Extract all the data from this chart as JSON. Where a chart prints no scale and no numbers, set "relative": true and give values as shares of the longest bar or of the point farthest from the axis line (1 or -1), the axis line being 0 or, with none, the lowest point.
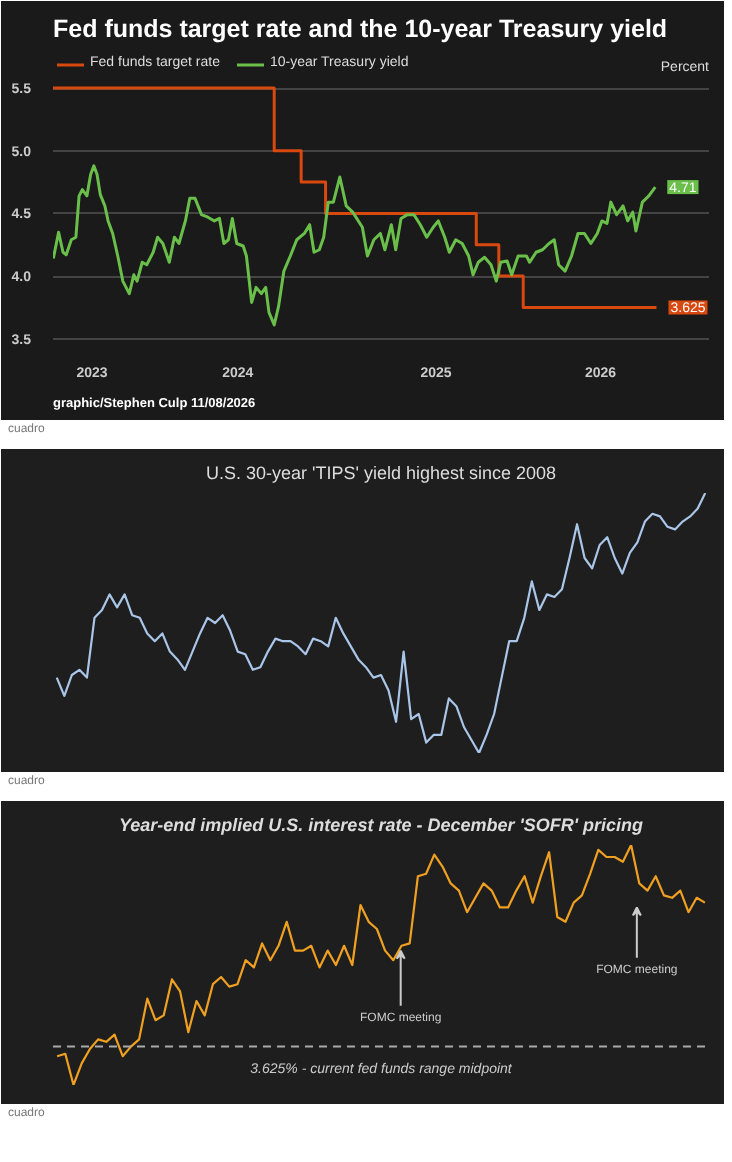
{
  "chart_data": [
    {
      "type": "line",
      "title": "Fed funds target rate and the 10-year Treasury yield",
      "ylabel": "Percent",
      "xlim": [
        2022.77,
        2026.64
      ],
      "xticks": [
        {
          "value": 2023,
          "label": "2023"
        },
        {
          "value": 2023.86,
          "label": "2024"
        },
        {
          "value": 2025.03,
          "label": "2025"
        },
        {
          "value": 2026,
          "label": "2026"
        }
      ],
      "ylim": [
        3.45,
        5.78
      ],
      "yticks": [
        3.5,
        {
          "value": 4,
          "label": "4.0"
        },
        4.5,
        {
          "value": 5,
          "label": "5.0"
        },
        5.5
      ],
      "grid": "y",
      "legend": "top left",
      "series": [
        {
          "name": "Fed funds target rate",
          "type": "step",
          "color": "#d9480f",
          "x": [
            2022.77,
            2024.075,
            2024.234,
            2024.378,
            2025.267,
            2025.4,
            2025.544,
            2026.33
          ],
          "values": [
            5.5,
            5.0,
            4.75,
            4.5,
            4.25,
            4.0,
            3.75,
            3.75
          ]
        },
        {
          "name": "10-year Treasury yield",
          "type": "line",
          "color": "#6abf4b",
          "x": [
            2022.772,
            2022.803,
            2022.829,
            2022.848,
            2022.878,
            2022.905,
            2022.924,
            2022.943,
            2022.97,
            2022.992,
            2023.011,
            2023.03,
            2023.049,
            2023.076,
            2023.095,
            2023.122,
            2023.152,
            2023.182,
            2023.22,
            2023.247,
            2023.266,
            2023.296,
            2023.323,
            2023.361,
            2023.387,
            2023.418,
            2023.456,
            2023.486,
            2023.513,
            2023.551,
            2023.577,
            2023.608,
            2023.646,
            2023.684,
            2023.722,
            2023.752,
            2023.778,
            2023.805,
            2023.828,
            2023.854,
            2023.892,
            2023.911,
            2023.942,
            2023.968,
            2023.999,
            2024.025,
            2024.044,
            2024.075,
            2024.101,
            2024.132,
            2024.17,
            2024.208,
            2024.253,
            2024.284,
            2024.31,
            2024.341,
            2024.367,
            2024.394,
            2024.424,
            2024.462,
            2024.5,
            2024.538,
            2024.595,
            2024.625,
            2024.663,
            2024.701,
            2024.728,
            2024.766,
            2024.792,
            2024.823,
            2024.861,
            2024.899,
            2024.937,
            2024.975,
            2025.013,
            2025.043,
            2025.081,
            2025.108,
            2025.146,
            2025.184,
            2025.222,
            2025.248,
            2025.279,
            2025.316,
            2025.354,
            2025.385,
            2025.411,
            2025.449,
            2025.476,
            2025.514,
            2025.563,
            2025.582,
            2025.62,
            2025.658,
            2025.696,
            2025.727,
            2025.753,
            2025.791,
            2025.829,
            2025.867,
            2025.905,
            2025.943,
            2025.981,
            2026.008,
            2026.038,
            2026.061,
            2026.095,
            2026.133,
            2026.16,
            2026.19,
            2026.209,
            2026.247,
            2026.285,
            2026.323
          ],
          "values": [
            4.14,
            4.35,
            4.19,
            4.17,
            4.29,
            4.31,
            4.64,
            4.69,
            4.64,
            4.81,
            4.88,
            4.81,
            4.65,
            4.56,
            4.44,
            4.34,
            4.16,
            3.96,
            3.86,
            4.01,
            3.96,
            4.11,
            4.09,
            4.19,
            4.31,
            4.26,
            4.11,
            4.31,
            4.26,
            4.44,
            4.62,
            4.62,
            4.49,
            4.47,
            4.44,
            4.46,
            4.26,
            4.29,
            4.46,
            4.26,
            4.24,
            4.16,
            3.79,
            3.91,
            3.86,
            3.91,
            3.71,
            3.61,
            3.76,
            4.04,
            4.16,
            4.29,
            4.34,
            4.41,
            4.19,
            4.21,
            4.31,
            4.59,
            4.59,
            4.79,
            4.56,
            4.51,
            4.39,
            4.16,
            4.29,
            4.34,
            4.21,
            4.41,
            4.21,
            4.46,
            4.49,
            4.49,
            4.41,
            4.31,
            4.39,
            4.44,
            4.31,
            4.19,
            4.29,
            4.26,
            4.16,
            4.01,
            4.11,
            4.15,
            4.09,
            3.96,
            4.11,
            4.12,
            4.01,
            4.16,
            4.16,
            4.11,
            4.19,
            4.21,
            4.26,
            4.29,
            4.09,
            4.04,
            4.16,
            4.34,
            4.34,
            4.26,
            4.34,
            4.44,
            4.42,
            4.59,
            4.49,
            4.56,
            4.44,
            4.51,
            4.36,
            4.59,
            4.64,
            4.71
          ]
        }
      ],
      "annotations": [
        {
          "text": "3.625",
          "x": 2026.33,
          "y": 3.75
        },
        {
          "text": "4.71",
          "x": 2026.323,
          "y": 4.71
        },
        "graphic/Stephen Culp 11/08/2026",
        "cuadro"
      ]
    },
    {
      "type": "line",
      "title": "U.S. 30-year 'TIPS' yield highest since 2008",
      "relative": true,
      "categories": [
        null,
        null,
        null,
        null,
        null,
        null,
        null,
        null,
        null,
        null,
        null,
        null,
        null,
        null,
        null,
        null,
        null,
        null,
        null,
        null,
        null,
        null,
        null,
        null,
        null,
        null,
        null,
        null,
        null,
        null,
        null,
        null,
        null,
        null,
        null,
        null,
        null,
        null,
        null,
        null,
        null,
        null,
        null,
        null,
        null,
        null,
        null,
        null,
        null,
        null,
        null,
        null,
        null,
        null,
        null,
        null,
        null,
        null,
        null,
        null,
        null,
        null,
        null,
        null,
        null,
        null,
        null,
        null,
        null,
        null,
        null,
        null,
        null,
        null,
        null,
        null,
        null,
        null,
        null,
        null,
        null,
        null,
        null,
        null,
        null,
        null,
        null
      ],
      "color": "#a9c6e8",
      "values": [
        0.29,
        0.22,
        0.3,
        0.32,
        0.29,
        0.52,
        0.55,
        0.61,
        0.56,
        0.61,
        0.53,
        0.52,
        0.46,
        0.43,
        0.46,
        0.39,
        0.36,
        0.32,
        0.39,
        0.46,
        0.52,
        0.5,
        0.53,
        0.47,
        0.39,
        0.38,
        0.32,
        0.33,
        0.39,
        0.44,
        0.43,
        0.43,
        0.41,
        0.38,
        0.44,
        0.43,
        0.41,
        0.52,
        0.46,
        0.41,
        0.36,
        0.33,
        0.29,
        0.3,
        0.24,
        0.12,
        0.39,
        0.13,
        0.15,
        0.04,
        0.07,
        0.07,
        0.21,
        0.18,
        0.1,
        0.05,
        0.0,
        0.07,
        0.15,
        0.29,
        0.43,
        0.43,
        0.52,
        0.66,
        0.55,
        0.61,
        0.6,
        0.63,
        0.75,
        0.88,
        0.75,
        0.71,
        0.8,
        0.83,
        0.75,
        0.69,
        0.77,
        0.81,
        0.89,
        0.92,
        0.91,
        0.87,
        0.86,
        0.89,
        0.91,
        0.94,
        1.0
      ],
      "annotations": [
        "cuadro"
      ]
    },
    {
      "type": "line",
      "title": "Year-end implied U.S. interest rate - December 'SOFR' pricing",
      "relative": true,
      "categories": [
        null,
        null,
        null,
        null,
        null,
        null,
        null,
        null,
        null,
        null,
        null,
        null,
        null,
        null,
        null,
        null,
        null,
        null,
        null,
        null,
        null,
        null,
        null,
        null,
        null,
        null,
        null,
        null,
        null,
        null,
        null,
        null,
        null,
        null,
        null,
        null,
        null,
        null,
        null,
        null,
        null,
        null,
        null,
        null,
        null,
        null,
        null,
        null,
        null,
        null,
        null,
        null,
        null,
        null,
        null,
        null,
        null,
        null,
        null,
        null,
        null,
        null,
        null,
        null,
        null,
        null,
        null,
        null,
        null,
        null,
        null,
        null,
        null,
        null,
        null,
        null,
        null,
        null,
        null,
        null
      ],
      "color": "#f0a020",
      "values": [
        0.12,
        0.13,
        0.0,
        0.09,
        0.15,
        0.19,
        0.18,
        0.21,
        0.12,
        0.16,
        0.19,
        0.36,
        0.27,
        0.29,
        0.44,
        0.39,
        0.22,
        0.35,
        0.29,
        0.42,
        0.45,
        0.41,
        0.42,
        0.52,
        0.49,
        0.59,
        0.52,
        0.58,
        0.68,
        0.56,
        0.56,
        0.58,
        0.49,
        0.56,
        0.5,
        0.58,
        0.5,
        0.75,
        0.68,
        0.65,
        0.56,
        0.52,
        0.58,
        0.59,
        0.87,
        0.88,
        0.96,
        0.91,
        0.84,
        0.81,
        0.72,
        0.78,
        0.84,
        0.81,
        0.74,
        0.74,
        0.81,
        0.87,
        0.76,
        0.87,
        0.97,
        0.7,
        0.68,
        0.76,
        0.79,
        0.88,
        0.98,
        0.95,
        0.95,
        0.93,
        1.0,
        0.84,
        0.81,
        0.87,
        0.79,
        0.78,
        0.81,
        0.72,
        0.78,
        0.76
      ],
      "ref_lines": [
        {
          "axis": "y",
          "value": 0.16,
          "label": "3.625% - current fed funds range midpoint",
          "color": "#aaaaaa",
          "line_style": "dashed"
        }
      ],
      "annotations": [
        "FOMC meeting",
        "FOMC meeting",
        "cuadro"
      ]
    }
  ]
}
